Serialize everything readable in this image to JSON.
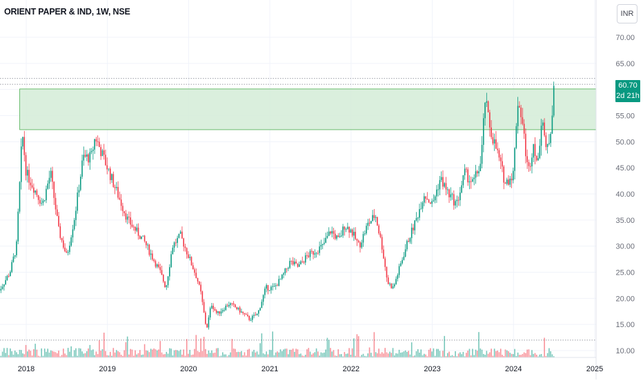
{
  "header": {
    "symbol_title": "ORIENT PAPER & IND, 1W, NSE",
    "currency_label": "INR"
  },
  "price_badge": {
    "price": "60.70",
    "countdown": "2d 21h"
  },
  "colors": {
    "up": "#089981",
    "down": "#f23645",
    "zone_fill": "#d4ecd7",
    "zone_border": "#4caf50",
    "badge": "#089981"
  },
  "chart_data": {
    "type": "candlestick",
    "y_ticks": [
      "70.00",
      "65.00",
      "60.00",
      "55.00",
      "50.00",
      "45.00",
      "40.00",
      "35.00",
      "30.00",
      "25.00",
      "20.00",
      "15.00",
      "10.00"
    ],
    "y_tick_values": [
      70,
      65,
      60,
      55,
      50,
      45,
      40,
      35,
      30,
      25,
      20,
      15,
      10
    ],
    "x_ticks": [
      "2018",
      "2019",
      "2020",
      "2021",
      "2022",
      "2023",
      "2024",
      "2025"
    ],
    "x_tick_values": [
      2018,
      2019,
      2020,
      2021,
      2022,
      2023,
      2024,
      2025
    ],
    "ylim": [
      9,
      73
    ],
    "xlim": [
      2017.65,
      2025.25
    ],
    "last_price": 60.7,
    "dotted_levels": [
      62.1,
      61.0,
      12.0
    ],
    "resistance_zone": {
      "x_start": 2017.92,
      "top": 60.1,
      "bottom": 52.3
    },
    "price_path": [
      [
        2017.65,
        21
      ],
      [
        2017.8,
        25
      ],
      [
        2017.88,
        30
      ],
      [
        2017.93,
        45
      ],
      [
        2017.95,
        52
      ],
      [
        2018.0,
        44
      ],
      [
        2018.1,
        41
      ],
      [
        2018.2,
        38
      ],
      [
        2018.3,
        44
      ],
      [
        2018.4,
        33
      ],
      [
        2018.5,
        28
      ],
      [
        2018.6,
        36
      ],
      [
        2018.7,
        47
      ],
      [
        2018.8,
        47
      ],
      [
        2018.85,
        51
      ],
      [
        2018.95,
        47
      ],
      [
        2019.05,
        43
      ],
      [
        2019.15,
        39
      ],
      [
        2019.25,
        35
      ],
      [
        2019.35,
        33
      ],
      [
        2019.45,
        31
      ],
      [
        2019.55,
        28
      ],
      [
        2019.65,
        25
      ],
      [
        2019.72,
        22
      ],
      [
        2019.8,
        30
      ],
      [
        2019.9,
        32
      ],
      [
        2020.0,
        28
      ],
      [
        2020.1,
        24
      ],
      [
        2020.15,
        21
      ],
      [
        2020.22,
        14
      ],
      [
        2020.28,
        19
      ],
      [
        2020.35,
        17
      ],
      [
        2020.5,
        19
      ],
      [
        2020.6,
        18
      ],
      [
        2020.75,
        16
      ],
      [
        2020.85,
        17
      ],
      [
        2020.95,
        22
      ],
      [
        2021.05,
        22
      ],
      [
        2021.15,
        24
      ],
      [
        2021.25,
        27
      ],
      [
        2021.35,
        26
      ],
      [
        2021.45,
        28
      ],
      [
        2021.55,
        29
      ],
      [
        2021.65,
        30
      ],
      [
        2021.75,
        33
      ],
      [
        2021.85,
        31
      ],
      [
        2021.92,
        34
      ],
      [
        2022.0,
        33
      ],
      [
        2022.1,
        30
      ],
      [
        2022.2,
        34
      ],
      [
        2022.3,
        36
      ],
      [
        2022.38,
        30
      ],
      [
        2022.45,
        23
      ],
      [
        2022.52,
        22
      ],
      [
        2022.6,
        26
      ],
      [
        2022.7,
        31
      ],
      [
        2022.8,
        35
      ],
      [
        2022.9,
        40
      ],
      [
        2023.0,
        38
      ],
      [
        2023.1,
        43
      ],
      [
        2023.2,
        40
      ],
      [
        2023.3,
        38
      ],
      [
        2023.4,
        44
      ],
      [
        2023.5,
        42
      ],
      [
        2023.6,
        46
      ],
      [
        2023.65,
        58
      ],
      [
        2023.72,
        52
      ],
      [
        2023.8,
        48
      ],
      [
        2023.9,
        42
      ],
      [
        2024.0,
        44
      ],
      [
        2024.05,
        58
      ],
      [
        2024.1,
        55
      ],
      [
        2024.18,
        44
      ],
      [
        2024.25,
        50
      ],
      [
        2024.3,
        45
      ],
      [
        2024.35,
        56
      ],
      [
        2024.4,
        48
      ],
      [
        2024.45,
        51
      ],
      [
        2024.5,
        60.7
      ]
    ]
  }
}
